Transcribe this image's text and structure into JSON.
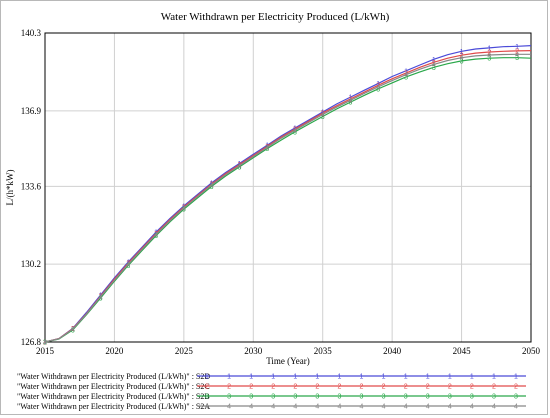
{
  "chart_data": {
    "type": "line",
    "title": "Water Withdrawn per Electricity Produced (L/kWh)",
    "xlabel": "Time (Year)",
    "ylabel": "L/(h*kW)",
    "xlim": [
      2015,
      2050
    ],
    "ylim": [
      126.8,
      140.3
    ],
    "x_ticks": [
      "2015",
      "2020",
      "2025",
      "2030",
      "2035",
      "2040",
      "2045",
      "2050"
    ],
    "y_ticks": [
      "126.8",
      "130.2",
      "133.6",
      "136.9",
      "140.3"
    ],
    "grid": true,
    "legend_position": "bottom",
    "series": [
      {
        "name": "\"Water Withdrawn per Electricity Produced (L/kWh)\" : S2D",
        "marker": "1",
        "color": "#4a4ad8",
        "x": [
          2015,
          2016,
          2017,
          2018,
          2019,
          2020,
          2021,
          2022,
          2023,
          2024,
          2025,
          2026,
          2027,
          2028,
          2029,
          2030,
          2031,
          2032,
          2033,
          2034,
          2035,
          2036,
          2037,
          2038,
          2039,
          2040,
          2041,
          2042,
          2043,
          2044,
          2045,
          2046,
          2047,
          2048,
          2049,
          2050
        ],
        "values": [
          126.8,
          126.95,
          127.4,
          128.1,
          128.85,
          129.6,
          130.3,
          130.95,
          131.6,
          132.2,
          132.75,
          133.25,
          133.75,
          134.2,
          134.6,
          135.0,
          135.4,
          135.8,
          136.15,
          136.5,
          136.85,
          137.2,
          137.5,
          137.8,
          138.1,
          138.4,
          138.65,
          138.9,
          139.15,
          139.35,
          139.5,
          139.6,
          139.65,
          139.7,
          139.72,
          139.75
        ]
      },
      {
        "name": "\"Water Withdrawn per Electricity Produced (L/kWh)\" : S2C",
        "marker": "2",
        "color": "#e04a4a",
        "x": [
          2015,
          2016,
          2017,
          2018,
          2019,
          2020,
          2021,
          2022,
          2023,
          2024,
          2025,
          2026,
          2027,
          2028,
          2029,
          2030,
          2031,
          2032,
          2033,
          2034,
          2035,
          2036,
          2037,
          2038,
          2039,
          2040,
          2041,
          2042,
          2043,
          2044,
          2045,
          2046,
          2047,
          2048,
          2049,
          2050
        ],
        "values": [
          126.8,
          126.95,
          127.38,
          128.05,
          128.8,
          129.55,
          130.25,
          130.9,
          131.55,
          132.15,
          132.7,
          133.2,
          133.7,
          134.15,
          134.55,
          134.95,
          135.35,
          135.75,
          136.1,
          136.45,
          136.8,
          137.12,
          137.42,
          137.72,
          138.02,
          138.3,
          138.55,
          138.8,
          139.02,
          139.2,
          139.33,
          139.42,
          139.47,
          139.5,
          139.52,
          139.53
        ]
      },
      {
        "name": "\"Water Withdrawn per Electricity Produced (L/kWh)\" : S2B",
        "marker": "3",
        "color": "#2aa84a",
        "x": [
          2015,
          2016,
          2017,
          2018,
          2019,
          2020,
          2021,
          2022,
          2023,
          2024,
          2025,
          2026,
          2027,
          2028,
          2029,
          2030,
          2031,
          2032,
          2033,
          2034,
          2035,
          2036,
          2037,
          2038,
          2039,
          2040,
          2041,
          2042,
          2043,
          2044,
          2045,
          2046,
          2047,
          2048,
          2049,
          2050
        ],
        "values": [
          126.8,
          126.93,
          127.33,
          128.0,
          128.72,
          129.45,
          130.15,
          130.8,
          131.45,
          132.05,
          132.6,
          133.1,
          133.6,
          134.05,
          134.45,
          134.85,
          135.25,
          135.62,
          135.98,
          136.32,
          136.65,
          136.98,
          137.28,
          137.58,
          137.86,
          138.12,
          138.38,
          138.6,
          138.8,
          138.96,
          139.08,
          139.16,
          139.2,
          139.22,
          139.22,
          139.2
        ]
      },
      {
        "name": "\"Water Withdrawn per Electricity Produced (L/kWh)\" : S2A",
        "marker": "4",
        "color": "#888888",
        "x": [
          2015,
          2016,
          2017,
          2018,
          2019,
          2020,
          2021,
          2022,
          2023,
          2024,
          2025,
          2026,
          2027,
          2028,
          2029,
          2030,
          2031,
          2032,
          2033,
          2034,
          2035,
          2036,
          2037,
          2038,
          2039,
          2040,
          2041,
          2042,
          2043,
          2044,
          2045,
          2046,
          2047,
          2048,
          2049,
          2050
        ],
        "values": [
          126.8,
          126.94,
          127.36,
          128.03,
          128.77,
          129.5,
          130.2,
          130.86,
          131.5,
          132.1,
          132.66,
          133.16,
          133.66,
          134.1,
          134.5,
          134.9,
          135.3,
          135.7,
          136.05,
          136.4,
          136.74,
          137.06,
          137.36,
          137.66,
          137.95,
          138.22,
          138.48,
          138.72,
          138.93,
          139.1,
          139.22,
          139.3,
          139.34,
          139.36,
          139.37,
          139.37
        ]
      }
    ]
  }
}
